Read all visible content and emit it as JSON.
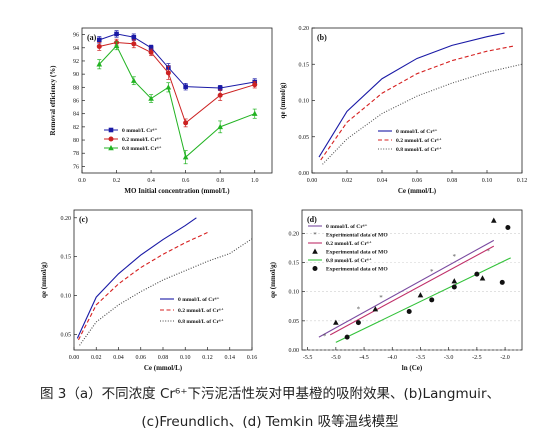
{
  "caption": {
    "line1": "图 3（a）不同浓度 Cr⁶⁺下污泥活性炭对甲基橙的吸附效果、(b)Langmuir、",
    "line2": "(c)Freundlich、(d) Temkin 吸等温线模型"
  },
  "chart_data": [
    {
      "panel": "(a)",
      "type": "line",
      "xlabel": "MO Initial concentration (mmol/L)",
      "ylabel": "Removal efficiency (%)",
      "xlim": [
        0.0,
        1.1
      ],
      "ylim": [
        75,
        97
      ],
      "xticks": [
        "0.0",
        "0.2",
        "0.4",
        "0.6",
        "0.8",
        "1.0"
      ],
      "yticks": [
        "76",
        "78",
        "80",
        "82",
        "84",
        "86",
        "88",
        "90",
        "92",
        "94",
        "96"
      ],
      "x": [
        0.1,
        0.2,
        0.3,
        0.4,
        0.5,
        0.6,
        0.8,
        1.0
      ],
      "series": [
        {
          "name": "0 mmol/L Cr⁶⁺",
          "color": "#1a1aa6",
          "marker": "square",
          "values": [
            95.2,
            96.1,
            95.6,
            94.0,
            91.0,
            88.1,
            87.9,
            88.8
          ],
          "errors": [
            0.5,
            0.5,
            0.5,
            0.4,
            0.6,
            0.5,
            0.4,
            0.5
          ]
        },
        {
          "name": "0.2 mmol/L Cr⁶⁺",
          "color": "#cc2222",
          "marker": "circle",
          "values": [
            94.2,
            94.8,
            94.6,
            93.3,
            90.2,
            82.6,
            86.8,
            88.4
          ],
          "errors": [
            0.6,
            0.5,
            0.6,
            0.5,
            1.0,
            0.6,
            0.8,
            0.5
          ]
        },
        {
          "name": "0.8 mmol/L Cr⁶⁺",
          "color": "#22b322",
          "marker": "triangle",
          "values": [
            91.5,
            94.3,
            89.0,
            86.3,
            88.0,
            77.4,
            82.0,
            84.0
          ],
          "errors": [
            0.7,
            0.6,
            0.6,
            0.6,
            0.7,
            1.0,
            0.9,
            0.7
          ]
        }
      ]
    },
    {
      "panel": "(b)",
      "type": "line",
      "xlabel": "Ce (mmol/L)",
      "ylabel": "qe (mmol/g)",
      "xlim": [
        0.0,
        0.12
      ],
      "ylim": [
        0.0,
        0.2
      ],
      "xticks": [
        "0.00",
        "0.02",
        "0.04",
        "0.06",
        "0.08",
        "0.10",
        "0.12"
      ],
      "yticks": [
        "0.00",
        "0.05",
        "0.10",
        "0.15",
        "0.20"
      ],
      "series": [
        {
          "name": "0 mmol/L of Cr⁶⁺",
          "color": "#1a1aa6",
          "dash": "solid",
          "x": [
            0.004,
            0.02,
            0.04,
            0.06,
            0.08,
            0.1,
            0.11
          ],
          "values": [
            0.022,
            0.085,
            0.13,
            0.158,
            0.176,
            0.188,
            0.193
          ]
        },
        {
          "name": "0.2 mmol/L of Cr⁶⁺",
          "color": "#d62020",
          "dash": "dashed",
          "x": [
            0.005,
            0.02,
            0.04,
            0.06,
            0.08,
            0.1,
            0.115
          ],
          "values": [
            0.018,
            0.07,
            0.11,
            0.137,
            0.155,
            0.168,
            0.175
          ]
        },
        {
          "name": "0.8 mmol/L of Cr⁶⁺",
          "color": "#555555",
          "dash": "dotted",
          "x": [
            0.006,
            0.02,
            0.04,
            0.06,
            0.08,
            0.1,
            0.12
          ],
          "values": [
            0.012,
            0.047,
            0.082,
            0.106,
            0.124,
            0.139,
            0.15
          ]
        }
      ]
    },
    {
      "panel": "(c)",
      "type": "line",
      "xlabel": "Ce (mmol/L)",
      "ylabel": "qe (mmol/g)",
      "xlim": [
        0.0,
        0.16
      ],
      "ylim": [
        0.03,
        0.21
      ],
      "xticks": [
        "0.00",
        "0.02",
        "0.04",
        "0.06",
        "0.08",
        "0.10",
        "0.12",
        "0.14",
        "0.16"
      ],
      "yticks": [
        "0.05",
        "0.10",
        "0.15",
        "0.20"
      ],
      "series": [
        {
          "name": "0 mmol/L of Cr⁶⁺",
          "color": "#1a1aa6",
          "dash": "solid",
          "x": [
            0.003,
            0.02,
            0.04,
            0.06,
            0.08,
            0.1,
            0.11
          ],
          "values": [
            0.045,
            0.098,
            0.128,
            0.152,
            0.172,
            0.19,
            0.2
          ]
        },
        {
          "name": "0.2 mmol/L of Cr⁶⁺",
          "color": "#d62020",
          "dash": "dashed",
          "x": [
            0.004,
            0.02,
            0.04,
            0.06,
            0.08,
            0.1,
            0.12
          ],
          "values": [
            0.043,
            0.088,
            0.115,
            0.136,
            0.153,
            0.168,
            0.181
          ]
        },
        {
          "name": "0.8 mmol/L of Cr⁶⁺",
          "color": "#444444",
          "dash": "dotted",
          "x": [
            0.005,
            0.02,
            0.04,
            0.06,
            0.08,
            0.1,
            0.12,
            0.14,
            0.16
          ],
          "values": [
            0.036,
            0.066,
            0.088,
            0.105,
            0.12,
            0.132,
            0.144,
            0.154,
            0.173
          ]
        }
      ]
    },
    {
      "panel": "(d)",
      "type": "scatter",
      "xlabel": "ln (Ce)",
      "ylabel": "qe (mmol/g)",
      "xlim": [
        -5.6,
        -1.7
      ],
      "ylim": [
        0.0,
        0.24
      ],
      "xticks": [
        "-5.5",
        "-5.0",
        "-4.5",
        "-4.0",
        "-3.5",
        "-3.0",
        "-2.5",
        "-2.0"
      ],
      "yticks": [
        "0.00",
        "0.05",
        "0.10",
        "0.15",
        "0.20"
      ],
      "series": [
        {
          "name": "0 mmol/L of Cr⁶⁺",
          "color": "#7a4aa0",
          "kind": "fit",
          "x": [
            -5.3,
            -2.2
          ],
          "values": [
            0.022,
            0.188
          ]
        },
        {
          "name": "Experimental data of MO",
          "color": "#555555",
          "kind": "points",
          "marker": "star",
          "x": [
            -5.2,
            -4.6,
            -4.2,
            -3.3,
            -2.9,
            -2.3,
            -2.2
          ],
          "values": [
            0.024,
            0.07,
            0.09,
            0.135,
            0.16,
            0.17,
            0.22
          ]
        },
        {
          "name": "0.2 mmol/L of Cr⁶⁺",
          "color": "#c0306a",
          "kind": "fit",
          "x": [
            -5.1,
            -2.2
          ],
          "values": [
            0.026,
            0.178
          ]
        },
        {
          "name": "Experimental data of MO",
          "color": "#111111",
          "kind": "points",
          "marker": "triangle",
          "x": [
            -5.0,
            -4.3,
            -3.5,
            -2.9,
            -2.4,
            -2.2
          ],
          "values": [
            0.047,
            0.07,
            0.094,
            0.118,
            0.123,
            0.222
          ]
        },
        {
          "name": "0.8 mmol/L of Cr⁶⁺",
          "color": "#33c23a",
          "kind": "fit",
          "x": [
            -5.0,
            -1.9
          ],
          "values": [
            0.013,
            0.158
          ]
        },
        {
          "name": "Experimental data of MO",
          "color": "#111111",
          "kind": "points",
          "marker": "circle",
          "x": [
            -4.8,
            -4.6,
            -3.7,
            -3.3,
            -2.9,
            -2.5,
            -2.05,
            -1.95
          ],
          "values": [
            0.022,
            0.047,
            0.066,
            0.086,
            0.108,
            0.13,
            0.116,
            0.21
          ]
        }
      ]
    }
  ]
}
